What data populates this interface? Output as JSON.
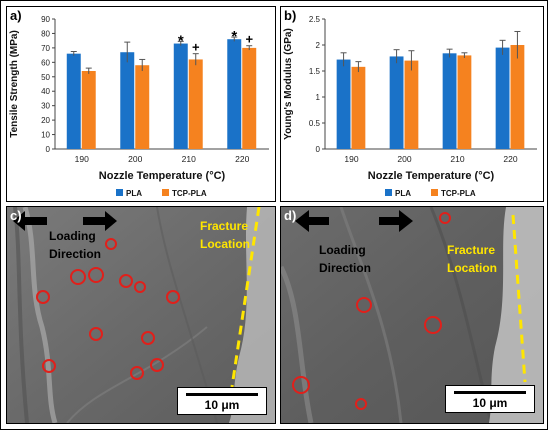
{
  "colors": {
    "pla": "#1a72c8",
    "tcp_pla": "#f5821f",
    "fracture": "#ffe600",
    "circle": "#e0201b",
    "sem_bg": "#6e6e6e"
  },
  "chart_data": [
    {
      "type": "bar",
      "panel_label": "a)",
      "categories": [
        "190",
        "200",
        "210",
        "220"
      ],
      "series": [
        {
          "name": "PLA",
          "values": [
            66,
            67,
            73,
            76
          ],
          "errors": [
            1.5,
            7,
            1.5,
            1.5
          ]
        },
        {
          "name": "TCP-PLA",
          "values": [
            54,
            58,
            62,
            70
          ],
          "errors": [
            2,
            4,
            4,
            1.5
          ]
        }
      ],
      "annotations": [
        {
          "category_index": 2,
          "series": 0,
          "text": "*"
        },
        {
          "category_index": 2,
          "series": 1,
          "text": "+"
        },
        {
          "category_index": 3,
          "series": 0,
          "text": "*"
        },
        {
          "category_index": 3,
          "series": 1,
          "text": "+"
        }
      ],
      "title": "",
      "xlabel": "Nozzle Temperature (°C)",
      "ylabel": "Tensile Strength (MPa)",
      "ylim": [
        0,
        90
      ],
      "yticks": [
        "0",
        "10",
        "20",
        "30",
        "40",
        "50",
        "60",
        "70",
        "80",
        "90"
      ],
      "legend": [
        "PLA",
        "TCP-PLA"
      ],
      "legend_position": "bottom",
      "grid": false
    },
    {
      "type": "bar",
      "panel_label": "b)",
      "categories": [
        "190",
        "200",
        "210",
        "220"
      ],
      "series": [
        {
          "name": "PLA",
          "values": [
            1.72,
            1.78,
            1.84,
            1.95
          ],
          "errors": [
            0.13,
            0.13,
            0.08,
            0.14
          ]
        },
        {
          "name": "TCP-PLA",
          "values": [
            1.58,
            1.7,
            1.8,
            2.0
          ],
          "errors": [
            0.1,
            0.19,
            0.05,
            0.26
          ]
        }
      ],
      "title": "",
      "xlabel": "Nozzle Temperature (°C)",
      "ylabel": "Young's Modulus (GPa)",
      "ylim": [
        0,
        2.5
      ],
      "yticks": [
        "0",
        "0.5",
        "1",
        "1.5",
        "2",
        "2.5"
      ],
      "legend": [
        "PLA",
        "TCP-PLA"
      ],
      "legend_position": "bottom",
      "grid": false
    }
  ],
  "sem": {
    "c": {
      "label": "c)",
      "loading_line1": "Loading",
      "loading_line2": "Direction",
      "fracture_line1": "Fracture",
      "fracture_line2": "Location",
      "scale": "10 μm"
    },
    "d": {
      "label": "d)",
      "loading_line1": "Loading",
      "loading_line2": "Direction",
      "fracture_line1": "Fracture",
      "fracture_line2": "Location",
      "scale": "10 μm"
    }
  }
}
